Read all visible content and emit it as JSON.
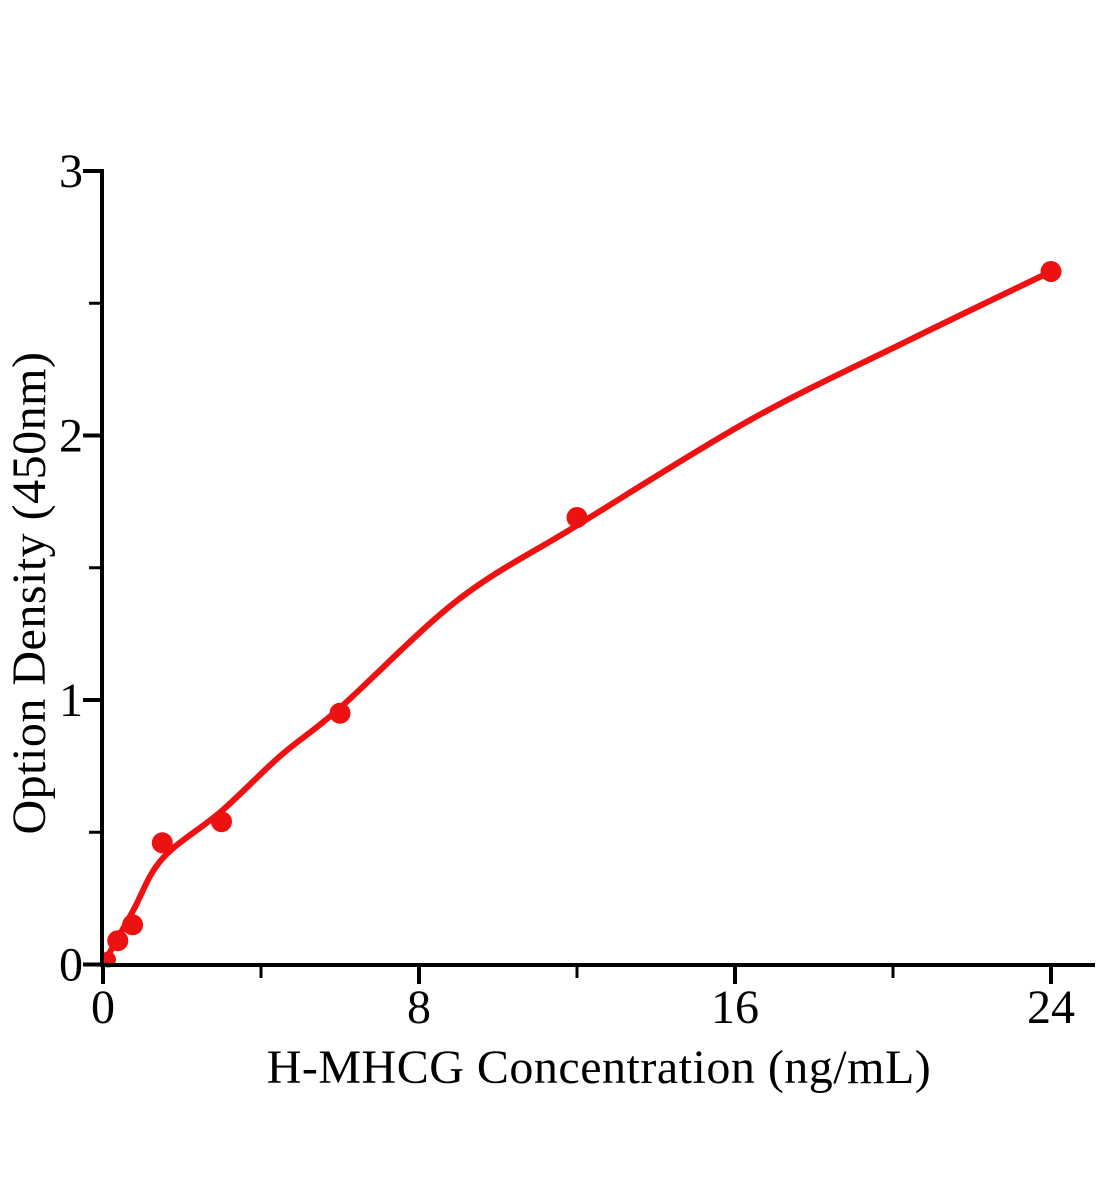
{
  "page": {
    "background": "#ffffff"
  },
  "chart_data": {
    "type": "scatter",
    "title": "",
    "xlabel": "H-MHCG Concentration（ng/mL）",
    "ylabel": "Option Density（450nm）",
    "xlim": [
      0,
      25.1
    ],
    "ylim": [
      0,
      3
    ],
    "grid": false,
    "legend": null,
    "axis_color": "#000000",
    "accent_color": "#ee1111",
    "tick_direction": "out",
    "x_ticks": {
      "major": [
        {
          "value": 0,
          "label": "0"
        },
        {
          "value": 8,
          "label": "8"
        },
        {
          "value": 16,
          "label": "16"
        },
        {
          "value": 24,
          "label": "24"
        }
      ],
      "minor": [
        4,
        12,
        20
      ]
    },
    "y_ticks": {
      "major": [
        {
          "value": 0,
          "label": "0"
        },
        {
          "value": 1,
          "label": "1"
        },
        {
          "value": 2,
          "label": "2"
        },
        {
          "value": 3,
          "label": "3"
        }
      ],
      "minor": [
        0.5,
        1.5,
        2.5
      ]
    },
    "series": [
      {
        "name": "standard-points",
        "type": "scatter",
        "marker": "circle",
        "color": "#ee1111",
        "points": [
          [
            0,
            0.01
          ],
          [
            0.375,
            0.09
          ],
          [
            0.75,
            0.15
          ],
          [
            1.5,
            0.46
          ],
          [
            3,
            0.54
          ],
          [
            6,
            0.95
          ],
          [
            12,
            1.69
          ],
          [
            24,
            2.62
          ]
        ]
      },
      {
        "name": "fitted-curve",
        "type": "line",
        "color": "#ee1111",
        "points": [
          [
            0,
            0
          ],
          [
            0.75,
            0.2
          ],
          [
            1.5,
            0.4
          ],
          [
            3,
            0.58
          ],
          [
            4.5,
            0.79
          ],
          [
            6,
            0.97
          ],
          [
            9,
            1.38
          ],
          [
            12,
            1.66
          ],
          [
            16.4,
            2.06
          ],
          [
            20.4,
            2.36
          ],
          [
            24,
            2.62
          ]
        ]
      }
    ]
  }
}
